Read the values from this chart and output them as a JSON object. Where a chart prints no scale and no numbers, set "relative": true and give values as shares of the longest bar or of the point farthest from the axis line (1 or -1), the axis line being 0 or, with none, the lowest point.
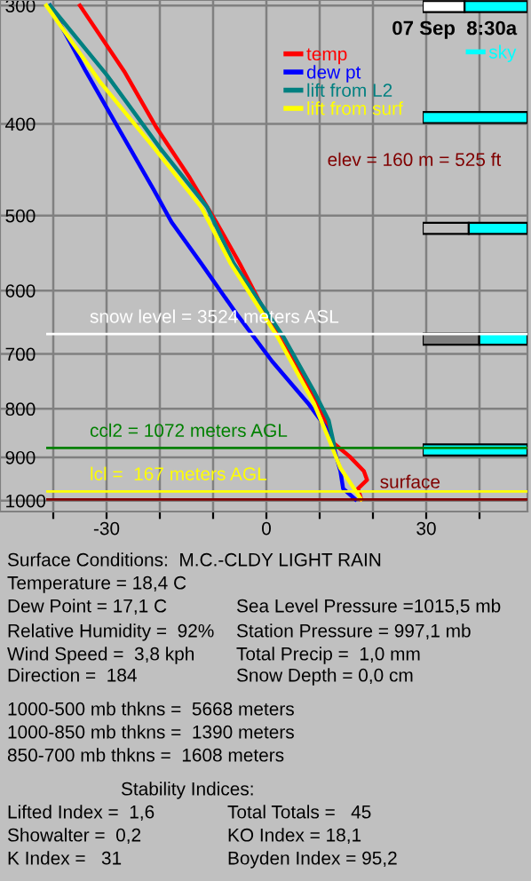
{
  "chart_data": [
    {
      "type": "line",
      "title": "07 Sep  8:30a",
      "annotations": [
        "elev = 160 m = 525 ft"
      ],
      "xlim": [
        -50,
        49
      ],
      "ylim": [
        1027,
        296
      ],
      "log": "y",
      "grid": true,
      "legend": "top right",
      "xticks": [
        {
          "value": -40,
          "label": null
        },
        -30,
        {
          "value": -20,
          "label": null
        },
        {
          "value": -10,
          "label": null
        },
        0,
        {
          "value": 10,
          "label": null
        },
        {
          "value": 20,
          "label": null
        },
        30,
        {
          "value": 40,
          "label": null
        }
      ],
      "yticks": [
        300,
        400,
        500,
        600,
        700,
        800,
        900,
        1000
      ],
      "series": [
        {
          "name": "temp",
          "type": "line",
          "color": "#ff0000",
          "x": [
            -35,
            -26.7,
            -20.6,
            -14.4,
            -9.4,
            -5,
            1.1,
            7.8,
            11.7,
            12.2,
            15.6,
            18.3,
            18.9,
            17.2,
            17.8
          ],
          "values": [
            300,
            352,
            404,
            456,
            508,
            562,
            654,
            755,
            836,
            866,
            898,
            931,
            951,
            971,
            997
          ]
        },
        {
          "name": "dew pt",
          "type": "line",
          "color": "#0000ff",
          "x": [
            -40.6,
            -33.9,
            -27.8,
            -21.1,
            -17.8,
            -12.2,
            -5.6,
            1.1,
            7.8,
            11.1,
            12.8,
            13.9,
            14.4,
            16.7
          ],
          "values": [
            300,
            352,
            404,
            470,
            508,
            562,
            635,
            713,
            789,
            836,
            885,
            931,
            971,
            997
          ]
        },
        {
          "name": "lift from L2",
          "type": "line",
          "color": "#008080",
          "x": [
            -40.6,
            -30,
            -20,
            -11.1,
            -6.1,
            3.3,
            8.9,
            11.7,
            12.7
          ],
          "values": [
            300,
            355,
            424,
            490,
            562,
            673,
            766,
            823,
            873
          ]
        },
        {
          "name": "lift from surf",
          "type": "line",
          "color": "#ffff00",
          "x": [
            -41.3,
            -31.1,
            -21.1,
            -12.2,
            -6.7,
            2.2,
            8.9,
            11.7,
            13.9,
            17.8
          ],
          "values": [
            300,
            362,
            424,
            490,
            562,
            673,
            789,
            860,
            924,
            997
          ]
        }
      ]
    },
    {
      "type": "line",
      "xlim": [
        -50,
        49
      ],
      "ylim": [
        1027,
        296
      ],
      "log": "y",
      "tick_labels": false,
      "legend": false,
      "series": [
        {
          "name": "snow level = 3524 meters ASL",
          "color": "#ffffff",
          "x": [
            -41.1,
            49
          ],
          "values": [
            667,
            667
          ]
        },
        {
          "name": "ccl2 = 1072 meters AGL",
          "color": "#008000",
          "x": [
            -41.1,
            49
          ],
          "values": [
            880,
            880
          ]
        },
        {
          "name": "lcl =  167 meters AGL",
          "color": "#ffff00",
          "x": [
            -41.1,
            49
          ],
          "values": [
            978,
            978
          ]
        },
        {
          "name": "surface",
          "color": "#800000",
          "x": [
            -41.1,
            49
          ],
          "values": [
            997,
            997
          ]
        }
      ]
    },
    {
      "type": "bar",
      "orientation": "horizontal",
      "stacked": true,
      "relative": true,
      "legend": "top right",
      "categories": [
        null,
        null,
        null,
        null,
        null
      ],
      "series": [
        {
          "colors": [
            "#ffffff",
            "#ffffff",
            "#c0c0c0",
            "#808080",
            "#ffffff"
          ],
          "values": [
            0.4,
            0,
            0.44,
            0.54,
            0
          ]
        },
        {
          "name": "sky",
          "color": "#00ffff",
          "values": [
            0.6,
            1,
            0.56,
            0.46,
            1
          ]
        }
      ]
    },
    {
      "type": "other",
      "annotations": [
        "Surface Conditions:  M.C.-CLDY LIGHT RAIN",
        "Temperature = 18,4 C",
        "Dew Point = 17,1 C",
        "Relative Humidity =  92%",
        "Wind Speed =  3,8 kph",
        "Direction =  184",
        "Sea Level Pressure =1015,5 mb",
        "Station Pressure = 997,1 mb",
        "Total Precip =  1,0 mm",
        "Snow Depth = 0,0 cm",
        "1000-500 mb thkns =  5668 meters",
        "1000-850 mb thkns =  1390 meters",
        "850-700 mb thkns =  1608 meters",
        "Stability Indices:",
        "Lifted Index =  1,6",
        "Showalter =  0,2",
        "K Index =   31",
        "Total Totals =   45",
        "KO Index = 18,1",
        "Boyden Index = 95,2"
      ]
    }
  ]
}
